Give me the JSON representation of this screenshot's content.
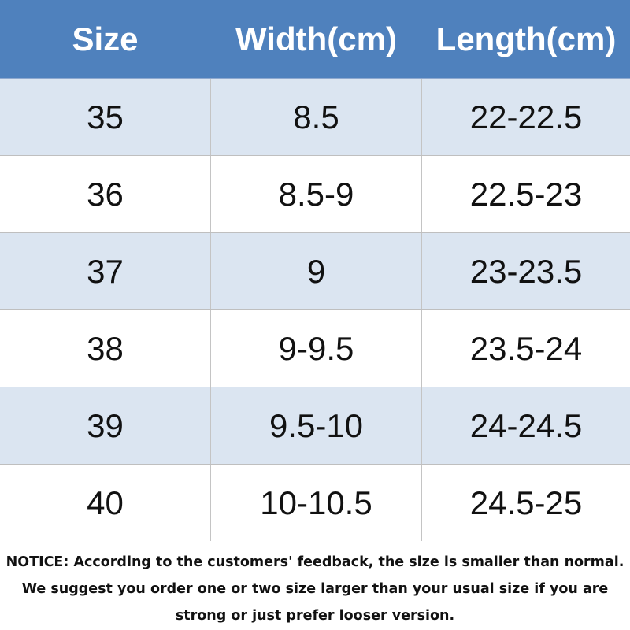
{
  "table": {
    "headers": {
      "size": "Size",
      "width": "Width(cm)",
      "length": "Length(cm)"
    },
    "rows": [
      {
        "size": "35",
        "width": "8.5",
        "length": "22-22.5"
      },
      {
        "size": "36",
        "width": "8.5-9",
        "length": "22.5-23"
      },
      {
        "size": "37",
        "width": "9",
        "length": "23-23.5"
      },
      {
        "size": "38",
        "width": "9-9.5",
        "length": "23.5-24"
      },
      {
        "size": "39",
        "width": "9.5-10",
        "length": "24-24.5"
      },
      {
        "size": "40",
        "width": "10-10.5",
        "length": "24.5-25"
      }
    ]
  },
  "notice": {
    "line1": "NOTICE: According to the customers' feedback, the size is smaller than normal.",
    "line2": "We suggest you order one or two size larger than your usual size if you are",
    "line3": "strong or just prefer looser version."
  },
  "colors": {
    "header_bg": "#4f81bd",
    "header_text": "#ffffff",
    "row_shaded": "#dbe5f1",
    "row_plain": "#ffffff"
  }
}
